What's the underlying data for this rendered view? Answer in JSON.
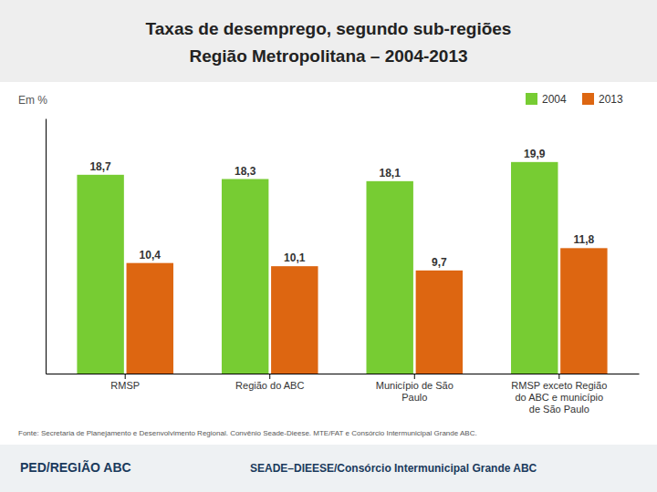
{
  "chart_data": {
    "type": "bar",
    "title": "Taxas de desemprego, segundo sub-regiões",
    "subtitle": "Região Metropolitana – 2004-2013",
    "ylabel": "Em %",
    "annotations": [
      "Fonte: Secretaria de Planejamento e Desenvolvimento Regional. Convênio Seade-Dieese. MTE/FAT e Consórcio Intermunicipal Grande ABC.",
      "PED/REGIÃO ABC",
      "SEADE–DIEESE/Consórcio Intermunicipal Grande ABC"
    ],
    "categories": [
      "RMSP",
      "Região do ABC",
      "Município de São\nPaulo",
      "RMSP exceto Região\ndo ABC e município\nde São Paulo"
    ],
    "series": [
      {
        "name": "2004",
        "color": "#77cc33",
        "values": [
          18.7,
          18.3,
          18.1,
          19.9
        ],
        "value_labels": [
          "18,7",
          "18,3",
          "18,1",
          "19,9"
        ]
      },
      {
        "name": "2013",
        "color": "#dd6611",
        "values": [
          10.4,
          10.1,
          9.7,
          11.8
        ],
        "value_labels": [
          "10,4",
          "10,1",
          "9,7",
          "11,8"
        ]
      }
    ],
    "ylim": [
      0,
      24
    ],
    "yticks": [],
    "tick_labels": "x",
    "grid": false,
    "legend": "upper right",
    "data_labels": true
  }
}
